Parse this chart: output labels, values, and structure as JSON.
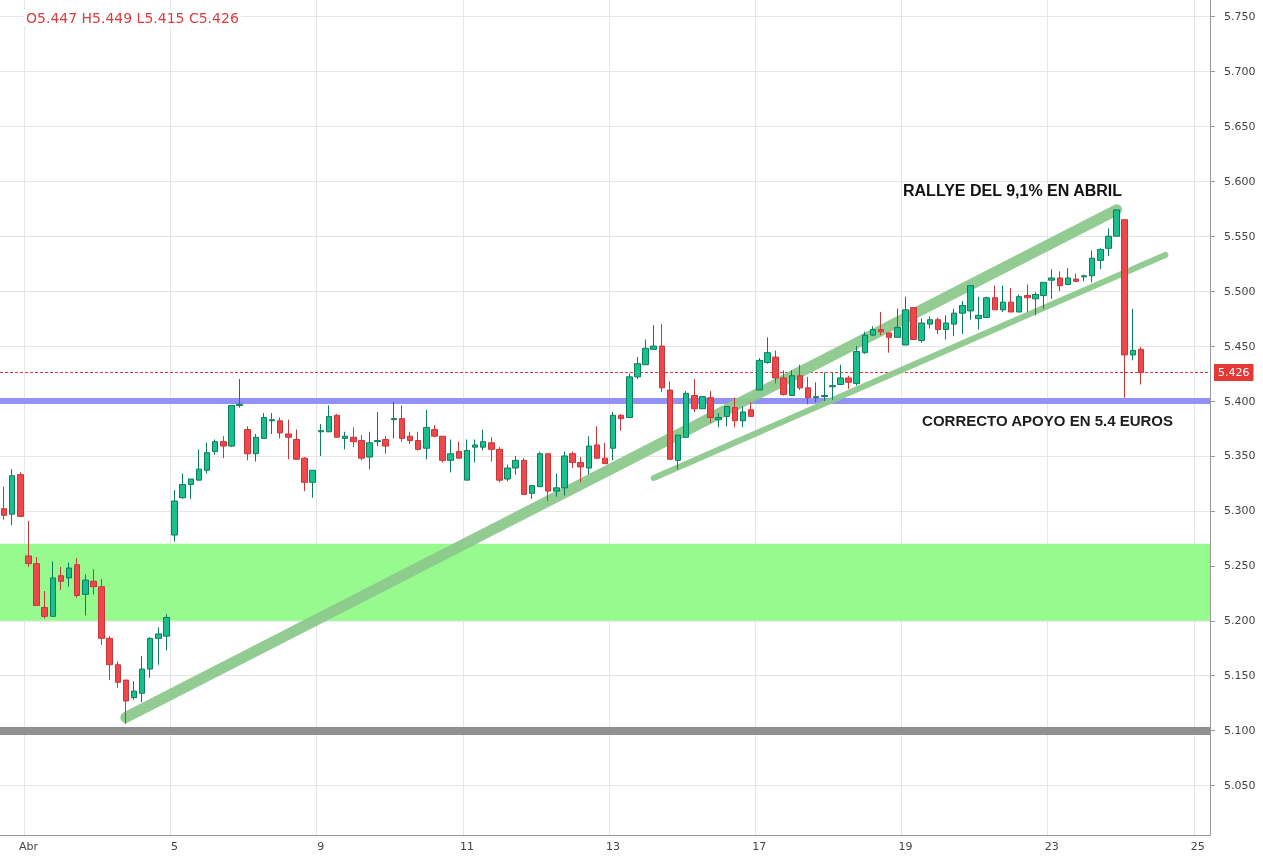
{
  "chart_data": {
    "type": "candlestick",
    "categories": [
      null,
      null,
      null,
      "Abr",
      null,
      null,
      null,
      null,
      null,
      null,
      null,
      null,
      null,
      null,
      null,
      null,
      null,
      null,
      null,
      null,
      null,
      "5",
      null,
      null,
      null,
      null,
      null,
      null,
      null,
      null,
      null,
      null,
      null,
      null,
      null,
      null,
      null,
      null,
      null,
      "9",
      null,
      null,
      null,
      null,
      null,
      null,
      null,
      null,
      null,
      null,
      null,
      null,
      null,
      null,
      null,
      null,
      null,
      "11",
      null,
      null,
      null,
      null,
      null,
      null,
      null,
      null,
      null,
      null,
      null,
      null,
      null,
      null,
      null,
      null,
      null,
      "13",
      null,
      null,
      null,
      null,
      null,
      null,
      null,
      null,
      null,
      null,
      null,
      null,
      null,
      null,
      null,
      null,
      null,
      "17",
      null,
      null,
      null,
      null,
      null,
      null,
      null,
      null,
      null,
      null,
      null,
      null,
      null,
      null,
      null,
      null,
      null,
      "19",
      null,
      null,
      null,
      null,
      null,
      null,
      null,
      null,
      null,
      null,
      null,
      null,
      null,
      null,
      null,
      null,
      null,
      "23",
      null,
      null,
      null,
      null,
      null,
      null,
      null,
      null,
      null,
      null,
      null,
      null,
      null,
      null,
      null,
      null,
      null,
      "25",
      null
    ],
    "ohlc": [
      [
        5.302,
        5.322,
        5.292,
        5.296
      ],
      [
        5.297,
        5.338,
        5.287,
        5.332
      ],
      [
        5.333,
        5.335,
        5.295,
        5.295
      ],
      [
        5.259,
        5.291,
        5.249,
        5.252
      ],
      [
        5.252,
        5.258,
        5.214,
        5.214
      ],
      [
        5.212,
        5.227,
        5.202,
        5.204
      ],
      [
        5.204,
        5.254,
        5.204,
        5.239
      ],
      [
        5.241,
        5.249,
        5.228,
        5.236
      ],
      [
        5.239,
        5.253,
        5.231,
        5.248
      ],
      [
        5.251,
        5.257,
        5.221,
        5.223
      ],
      [
        5.224,
        5.242,
        5.205,
        5.237
      ],
      [
        5.236,
        5.247,
        5.224,
        5.231
      ],
      [
        5.231,
        5.238,
        5.178,
        5.184
      ],
      [
        5.184,
        5.186,
        5.146,
        5.16
      ],
      [
        5.16,
        5.163,
        5.139,
        5.144
      ],
      [
        5.146,
        5.146,
        5.106,
        5.127
      ],
      [
        5.13,
        5.145,
        5.128,
        5.136
      ],
      [
        5.134,
        5.168,
        5.126,
        5.156
      ],
      [
        5.156,
        5.185,
        5.148,
        5.184
      ],
      [
        5.184,
        5.194,
        5.16,
        5.188
      ],
      [
        5.186,
        5.206,
        5.173,
        5.203
      ],
      [
        5.278,
        5.319,
        5.272,
        5.309
      ],
      [
        5.312,
        5.334,
        5.311,
        5.324
      ],
      [
        5.324,
        5.329,
        5.311,
        5.329
      ],
      [
        5.328,
        5.356,
        5.328,
        5.338
      ],
      [
        5.337,
        5.362,
        5.334,
        5.353
      ],
      [
        5.354,
        5.365,
        5.351,
        5.363
      ],
      [
        5.363,
        5.368,
        5.348,
        5.359
      ],
      [
        5.359,
        5.396,
        5.358,
        5.396
      ],
      [
        5.396,
        5.42,
        5.394,
        5.397
      ],
      [
        5.374,
        5.377,
        5.346,
        5.352
      ],
      [
        5.352,
        5.37,
        5.345,
        5.367
      ],
      [
        5.366,
        5.389,
        5.366,
        5.385
      ],
      [
        5.382,
        5.389,
        5.37,
        5.383
      ],
      [
        5.382,
        5.385,
        5.366,
        5.371
      ],
      [
        5.37,
        5.383,
        5.347,
        5.367
      ],
      [
        5.365,
        5.374,
        5.347,
        5.347
      ],
      [
        5.348,
        5.349,
        5.318,
        5.326
      ],
      [
        5.326,
        5.337,
        5.312,
        5.337
      ],
      [
        5.372,
        5.379,
        5.35,
        5.373
      ],
      [
        5.372,
        5.396,
        5.372,
        5.386
      ],
      [
        5.387,
        5.388,
        5.367,
        5.367
      ],
      [
        5.366,
        5.372,
        5.356,
        5.368
      ],
      [
        5.367,
        5.376,
        5.358,
        5.363
      ],
      [
        5.364,
        5.369,
        5.346,
        5.348
      ],
      [
        5.349,
        5.372,
        5.338,
        5.362
      ],
      [
        5.363,
        5.39,
        5.359,
        5.364
      ],
      [
        5.365,
        5.368,
        5.352,
        5.359
      ],
      [
        5.383,
        5.399,
        5.366,
        5.384
      ],
      [
        5.384,
        5.396,
        5.363,
        5.366
      ],
      [
        5.368,
        5.372,
        5.361,
        5.364
      ],
      [
        5.364,
        5.372,
        5.355,
        5.356
      ],
      [
        5.357,
        5.392,
        5.347,
        5.376
      ],
      [
        5.374,
        5.378,
        5.367,
        5.368
      ],
      [
        5.368,
        5.368,
        5.344,
        5.346
      ],
      [
        5.346,
        5.365,
        5.335,
        5.352
      ],
      [
        5.354,
        5.363,
        5.348,
        5.348
      ],
      [
        5.328,
        5.365,
        5.328,
        5.355
      ],
      [
        5.358,
        5.365,
        5.344,
        5.36
      ],
      [
        5.358,
        5.374,
        5.355,
        5.363
      ],
      [
        5.362,
        5.367,
        5.345,
        5.356
      ],
      [
        5.356,
        5.358,
        5.326,
        5.328
      ],
      [
        5.329,
        5.342,
        5.327,
        5.339
      ],
      [
        5.339,
        5.35,
        5.333,
        5.346
      ],
      [
        5.346,
        5.348,
        5.315,
        5.315
      ],
      [
        5.316,
        5.323,
        5.311,
        5.323
      ],
      [
        5.322,
        5.354,
        5.322,
        5.352
      ],
      [
        5.352,
        5.352,
        5.309,
        5.318
      ],
      [
        5.318,
        5.334,
        5.313,
        5.321
      ],
      [
        5.321,
        5.354,
        5.314,
        5.35
      ],
      [
        5.352,
        5.354,
        5.339,
        5.344
      ],
      [
        5.344,
        5.349,
        5.326,
        5.34
      ],
      [
        5.339,
        5.368,
        5.333,
        5.359
      ],
      [
        5.36,
        5.377,
        5.347,
        5.348
      ],
      [
        5.348,
        5.362,
        5.343,
        5.343
      ],
      [
        5.357,
        5.39,
        5.346,
        5.387
      ],
      [
        5.387,
        5.388,
        5.373,
        5.384
      ],
      [
        5.385,
        5.425,
        5.385,
        5.422
      ],
      [
        5.422,
        5.44,
        5.42,
        5.434
      ],
      [
        5.433,
        5.456,
        5.433,
        5.448
      ],
      [
        5.447,
        5.469,
        5.447,
        5.45
      ],
      [
        5.45,
        5.47,
        5.408,
        5.412
      ],
      [
        5.41,
        5.418,
        5.347,
        5.347
      ],
      [
        5.346,
        5.369,
        5.338,
        5.369
      ],
      [
        5.367,
        5.409,
        5.367,
        5.407
      ],
      [
        5.405,
        5.42,
        5.39,
        5.393
      ],
      [
        5.393,
        5.404,
        5.393,
        5.404
      ],
      [
        5.403,
        5.409,
        5.38,
        5.385
      ],
      [
        5.383,
        5.389,
        5.376,
        5.385
      ],
      [
        5.386,
        5.395,
        5.377,
        5.395
      ],
      [
        5.394,
        5.403,
        5.376,
        5.382
      ],
      [
        5.382,
        5.395,
        5.376,
        5.39
      ],
      [
        5.392,
        5.399,
        5.386,
        5.386
      ],
      [
        5.41,
        5.439,
        5.41,
        5.437
      ],
      [
        5.435,
        5.458,
        5.434,
        5.444
      ],
      [
        5.44,
        5.446,
        5.416,
        5.421
      ],
      [
        5.421,
        5.428,
        5.405,
        5.406
      ],
      [
        5.405,
        5.428,
        5.405,
        5.423
      ],
      [
        5.423,
        5.433,
        5.41,
        5.412
      ],
      [
        5.412,
        5.422,
        5.397,
        5.403
      ],
      [
        5.403,
        5.417,
        5.399,
        5.404
      ],
      [
        5.404,
        5.426,
        5.4,
        5.405
      ],
      [
        5.413,
        5.426,
        5.401,
        5.414
      ],
      [
        5.415,
        5.433,
        5.415,
        5.421
      ],
      [
        5.421,
        5.423,
        5.411,
        5.417
      ],
      [
        5.416,
        5.45,
        5.414,
        5.445
      ],
      [
        5.444,
        5.463,
        5.443,
        5.46
      ],
      [
        5.46,
        5.468,
        5.459,
        5.465
      ],
      [
        5.465,
        5.481,
        5.46,
        5.463
      ],
      [
        5.462,
        5.462,
        5.444,
        5.458
      ],
      [
        5.458,
        5.484,
        5.458,
        5.467
      ],
      [
        5.451,
        5.495,
        5.451,
        5.483
      ],
      [
        5.485,
        5.485,
        5.456,
        5.456
      ],
      [
        5.455,
        5.475,
        5.453,
        5.471
      ],
      [
        5.47,
        5.477,
        5.466,
        5.474
      ],
      [
        5.474,
        5.476,
        5.461,
        5.465
      ],
      [
        5.465,
        5.478,
        5.456,
        5.471
      ],
      [
        5.47,
        5.484,
        5.459,
        5.48
      ],
      [
        5.48,
        5.491,
        5.461,
        5.487
      ],
      [
        5.482,
        5.505,
        5.474,
        5.505
      ],
      [
        5.475,
        5.495,
        5.465,
        5.478
      ],
      [
        5.476,
        5.495,
        5.476,
        5.494
      ],
      [
        5.494,
        5.505,
        5.483,
        5.483
      ],
      [
        5.483,
        5.505,
        5.481,
        5.49
      ],
      [
        5.49,
        5.503,
        5.481,
        5.481
      ],
      [
        5.481,
        5.497,
        5.481,
        5.495
      ],
      [
        5.496,
        5.506,
        5.481,
        5.494
      ],
      [
        5.493,
        5.499,
        5.478,
        5.497
      ],
      [
        5.496,
        5.508,
        5.484,
        5.508
      ],
      [
        5.51,
        5.52,
        5.493,
        5.512
      ],
      [
        5.512,
        5.518,
        5.5,
        5.505
      ],
      [
        5.506,
        5.521,
        5.506,
        5.512
      ],
      [
        5.511,
        5.516,
        5.508,
        5.509
      ],
      [
        5.513,
        5.515,
        5.509,
        5.514
      ],
      [
        5.514,
        5.537,
        5.508,
        5.53
      ],
      [
        5.528,
        5.539,
        5.52,
        5.538
      ],
      [
        5.539,
        5.557,
        5.532,
        5.55
      ],
      [
        5.55,
        5.574,
        5.55,
        5.574
      ],
      [
        5.565,
        5.565,
        5.403,
        5.442
      ],
      [
        5.442,
        5.484,
        5.437,
        5.446
      ],
      [
        5.447,
        5.449,
        5.415,
        5.426
      ],
      null,
      null,
      null,
      null,
      null,
      null,
      null,
      null
    ],
    "series": [
      {
        "type": "line",
        "color": "#8dc98d",
        "values": [
          null,
          null,
          null,
          null,
          null,
          null,
          null,
          null,
          null,
          null,
          null,
          null,
          null,
          null,
          null,
          5.112,
          null,
          null,
          null,
          null,
          null,
          null,
          null,
          null,
          null,
          null,
          null,
          null,
          null,
          null,
          null,
          null,
          null,
          null,
          null,
          null,
          null,
          null,
          null,
          null,
          null,
          null,
          null,
          null,
          null,
          null,
          null,
          null,
          null,
          null,
          null,
          null,
          null,
          null,
          null,
          null,
          null,
          null,
          null,
          null,
          null,
          null,
          null,
          null,
          null,
          null,
          null,
          null,
          null,
          null,
          null,
          null,
          null,
          null,
          null,
          null,
          null,
          null,
          null,
          null,
          null,
          null,
          null,
          null,
          null,
          null,
          null,
          null,
          null,
          null,
          null,
          null,
          null,
          null,
          null,
          null,
          null,
          null,
          null,
          null,
          null,
          null,
          null,
          null,
          null,
          null,
          null,
          null,
          null,
          null,
          null,
          null,
          null,
          null,
          null,
          null,
          null,
          null,
          null,
          null,
          null,
          null,
          null,
          null,
          null,
          null,
          null,
          null,
          null,
          null,
          null,
          null,
          null,
          null,
          null,
          null,
          null,
          5.574,
          null,
          null,
          null,
          null,
          null,
          null,
          null,
          null,
          null,
          null,
          null
        ]
      },
      {
        "type": "line",
        "color": "#8dc98d",
        "values": [
          null,
          null,
          null,
          null,
          null,
          null,
          null,
          null,
          null,
          null,
          null,
          null,
          null,
          null,
          null,
          null,
          null,
          null,
          null,
          null,
          null,
          null,
          null,
          null,
          null,
          null,
          null,
          null,
          null,
          null,
          null,
          null,
          null,
          null,
          null,
          null,
          null,
          null,
          null,
          null,
          null,
          null,
          null,
          null,
          null,
          null,
          null,
          null,
          null,
          null,
          null,
          null,
          null,
          null,
          null,
          null,
          null,
          null,
          null,
          null,
          null,
          null,
          null,
          null,
          null,
          null,
          null,
          null,
          null,
          null,
          null,
          null,
          null,
          null,
          null,
          null,
          null,
          null,
          null,
          null,
          5.33,
          null,
          null,
          null,
          null,
          null,
          null,
          null,
          null,
          null,
          null,
          null,
          null,
          null,
          null,
          null,
          null,
          null,
          null,
          null,
          null,
          null,
          null,
          null,
          null,
          null,
          null,
          null,
          null,
          null,
          null,
          null,
          null,
          null,
          null,
          null,
          null,
          null,
          null,
          null,
          null,
          null,
          null,
          null,
          null,
          null,
          null,
          null,
          null,
          null,
          null,
          null,
          null,
          null,
          null,
          null,
          null,
          null,
          null,
          null,
          null,
          null,
          null,
          5.533,
          null,
          null,
          null,
          null,
          null
        ]
      }
    ],
    "ylim": [
      5.005,
      5.765
    ],
    "yticks": [
      {
        "value": 5.05,
        "label": "5.050"
      },
      {
        "value": 5.1,
        "label": "5.100"
      },
      {
        "value": 5.15,
        "label": "5.150"
      },
      {
        "value": 5.2,
        "label": "5.200"
      },
      {
        "value": 5.25,
        "label": "5.250"
      },
      {
        "value": 5.3,
        "label": "5.300"
      },
      {
        "value": 5.35,
        "label": "5.350"
      },
      {
        "value": 5.4,
        "label": "5.400"
      },
      {
        "value": 5.45,
        "label": "5.450"
      },
      {
        "value": 5.5,
        "label": "5.500"
      },
      {
        "value": 5.55,
        "label": "5.550"
      },
      {
        "value": 5.6,
        "label": "5.600"
      },
      {
        "value": 5.65,
        "label": "5.650"
      },
      {
        "value": 5.7,
        "label": "5.700"
      },
      {
        "value": 5.75,
        "label": "5.750"
      }
    ],
    "ref_lines": [
      {
        "axis": "y",
        "value": 5.426,
        "label": "5.426",
        "color": "#e53935",
        "line_style": "dashed"
      },
      {
        "axis": "y",
        "value": 5.4,
        "label": "CORRECTO APOYO EN 5.4 EUROS",
        "color": "#8c8cf5",
        "line_style": "solid"
      },
      {
        "axis": "y",
        "value": 5.1,
        "color": "#8a8a8a",
        "line_style": "solid"
      }
    ],
    "bands": [
      {
        "axis": "y",
        "from": 5.2,
        "to": 5.27,
        "color": "#90fa88"
      }
    ],
    "annotations": [
      "O5.447 H5.449 L5.415 C5.426",
      "RALLYE DEL 9,1% EN ABRIL"
    ],
    "grid": true
  }
}
